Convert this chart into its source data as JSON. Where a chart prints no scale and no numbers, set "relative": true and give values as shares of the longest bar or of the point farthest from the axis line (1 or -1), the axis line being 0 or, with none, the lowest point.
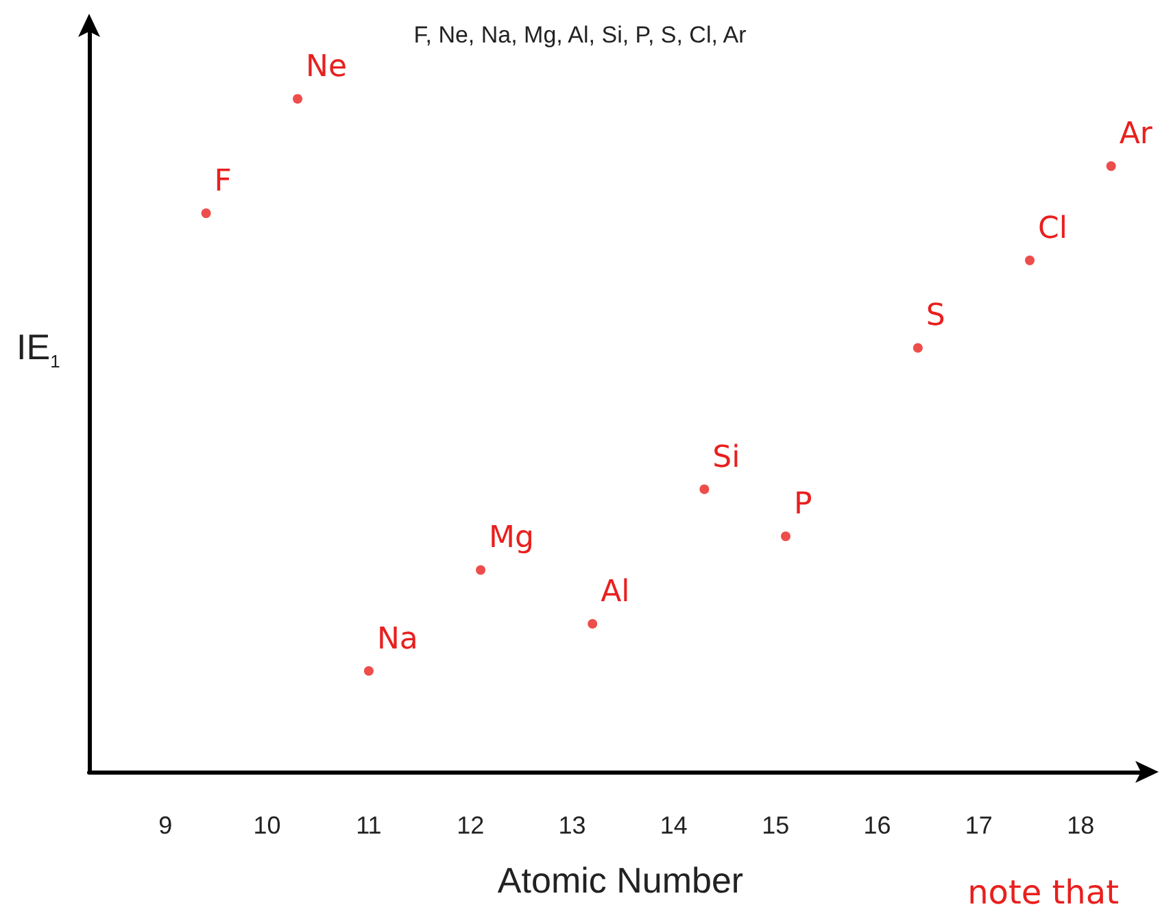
{
  "chart_data": {
    "type": "scatter",
    "title": "F, Ne, Na, Mg, Al, Si, P, S, Cl, Ar",
    "xlabel": "Atomic Number",
    "ylabel": "IE$_{1}$",
    "relative": true,
    "x": [
      9.4,
      10.3,
      11.0,
      12.1,
      13.2,
      14.3,
      15.1,
      16.4,
      17.5,
      18.3
    ],
    "values": [
      0.83,
      1,
      0.15,
      0.3,
      0.22,
      0.42,
      0.35,
      0.63,
      0.76,
      0.9
    ],
    "color": "#e8201e",
    "marker": "circle",
    "grid": false,
    "xlim": [
      8.25,
      18.7
    ],
    "xticks": [
      9,
      10,
      11,
      12,
      13,
      14,
      15,
      16,
      17,
      18
    ],
    "annotations": [
      {
        "text": "F",
        "x": 9.4,
        "y": 0.83
      },
      {
        "text": "Ne",
        "x": 10.3,
        "y": 1
      },
      {
        "text": "Na",
        "x": 11.0,
        "y": 0.15
      },
      {
        "text": "Mg",
        "x": 12.1,
        "y": 0.3
      },
      {
        "text": "Al",
        "x": 13.2,
        "y": 0.22
      },
      {
        "text": "Si",
        "x": 14.3,
        "y": 0.42
      },
      {
        "text": "P",
        "x": 15.1,
        "y": 0.35
      },
      {
        "text": "S",
        "x": 16.4,
        "y": 0.63
      },
      {
        "text": "Cl",
        "x": 17.5,
        "y": 0.76
      },
      {
        "text": "Ar",
        "x": 18.3,
        "y": 0.9
      },
      "note that"
    ]
  }
}
